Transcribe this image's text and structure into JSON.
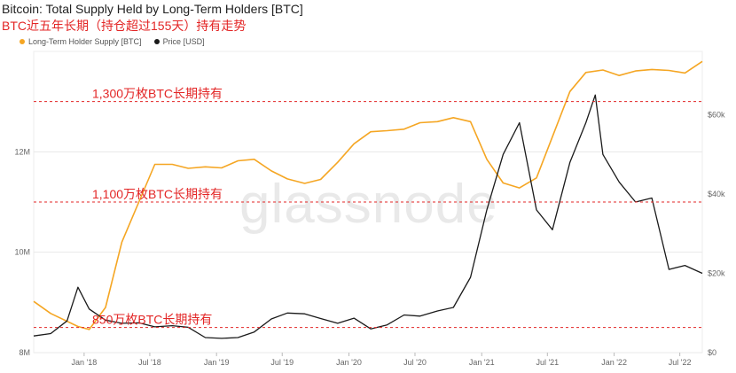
{
  "header": {
    "title": "Bitcoin: Total Supply Held by Long-Term Holders [BTC]",
    "subtitle": "BTC近五年长期（持仓超过155天）持有走势"
  },
  "legend": {
    "series1_label": "Long-Term Holder Supply [BTC]",
    "series2_label": "Price [USD]"
  },
  "watermark": "glassnode",
  "colors": {
    "supply": "#f5a623",
    "price": "#1a1a1a",
    "annotation": "#e32626",
    "grid": "#e8e8e8"
  },
  "chart_data": {
    "type": "line",
    "title": "Bitcoin: Total Supply Held by Long-Term Holders [BTC]",
    "x_ticks": [
      "Jan '18",
      "Jul '18",
      "Jan '19",
      "Jul '19",
      "Jan '20",
      "Jul '20",
      "Jan '21",
      "Jul '21",
      "Jan '22",
      "Jul '22"
    ],
    "x_range": [
      "2017-08-15",
      "2022-09-01"
    ],
    "y_left_ticks": [
      "8M",
      "10M",
      "12M"
    ],
    "y_left_range": [
      8000000,
      14000000
    ],
    "y_right_ticks": [
      "$0",
      "$20k",
      "$40k",
      "$60k"
    ],
    "y_right_range": [
      0,
      76000
    ],
    "series": [
      {
        "name": "Long-Term Holder Supply [BTC]",
        "axis": "left",
        "x": [
          "2017-08-15",
          "2017-10-01",
          "2017-12-15",
          "2018-01-15",
          "2018-03-01",
          "2018-04-15",
          "2018-06-01",
          "2018-07-15",
          "2018-09-01",
          "2018-10-15",
          "2018-12-01",
          "2019-01-15",
          "2019-03-01",
          "2019-04-15",
          "2019-06-01",
          "2019-07-15",
          "2019-09-01",
          "2019-10-15",
          "2019-12-01",
          "2020-01-15",
          "2020-03-01",
          "2020-04-15",
          "2020-06-01",
          "2020-07-15",
          "2020-09-01",
          "2020-10-15",
          "2020-12-01",
          "2021-01-15",
          "2021-03-01",
          "2021-04-15",
          "2021-06-01",
          "2021-07-15",
          "2021-09-01",
          "2021-10-15",
          "2021-12-01",
          "2022-01-15",
          "2022-03-01",
          "2022-04-15",
          "2022-06-01",
          "2022-07-15",
          "2022-09-01"
        ],
        "values": [
          9020000,
          8780000,
          8520000,
          8460000,
          8900000,
          10200000,
          11000000,
          11750000,
          11750000,
          11670000,
          11700000,
          11680000,
          11820000,
          11850000,
          11620000,
          11460000,
          11370000,
          11450000,
          11790000,
          12160000,
          12400000,
          12420000,
          12450000,
          12580000,
          12600000,
          12680000,
          12600000,
          11850000,
          11380000,
          11280000,
          11480000,
          12300000,
          13200000,
          13580000,
          13630000,
          13520000,
          13610000,
          13640000,
          13620000,
          13570000,
          13800000
        ]
      },
      {
        "name": "Price [USD]",
        "axis": "right",
        "x": [
          "2017-08-15",
          "2017-10-01",
          "2017-11-15",
          "2017-12-15",
          "2018-01-15",
          "2018-03-01",
          "2018-04-15",
          "2018-06-01",
          "2018-07-15",
          "2018-09-01",
          "2018-10-15",
          "2018-12-01",
          "2019-01-15",
          "2019-03-01",
          "2019-04-15",
          "2019-06-01",
          "2019-07-15",
          "2019-09-01",
          "2019-10-15",
          "2019-12-01",
          "2020-01-15",
          "2020-03-01",
          "2020-04-15",
          "2020-06-01",
          "2020-07-15",
          "2020-09-01",
          "2020-10-15",
          "2020-12-01",
          "2021-01-15",
          "2021-03-01",
          "2021-04-15",
          "2021-06-01",
          "2021-07-15",
          "2021-09-01",
          "2021-10-15",
          "2021-11-10",
          "2021-12-01",
          "2022-01-15",
          "2022-03-01",
          "2022-04-15",
          "2022-06-01",
          "2022-07-15",
          "2022-09-01"
        ],
        "values": [
          4200,
          4800,
          8000,
          16500,
          11000,
          8200,
          7400,
          7500,
          6500,
          6800,
          6400,
          3800,
          3600,
          3800,
          5200,
          8500,
          10000,
          9800,
          8600,
          7400,
          8700,
          6000,
          7000,
          9500,
          9200,
          10500,
          11400,
          19000,
          36000,
          50000,
          58000,
          36000,
          31000,
          48000,
          58000,
          65000,
          50000,
          43000,
          38000,
          39000,
          21000,
          22000,
          20000
        ]
      }
    ],
    "annotations": [
      {
        "label": "1,300万枚BTC长期持有",
        "value": 13000000
      },
      {
        "label": "1,100万枚BTC长期持有",
        "value": 11000000
      },
      {
        "label": "850万枚BTC长期持有",
        "value": 8500000
      }
    ]
  }
}
